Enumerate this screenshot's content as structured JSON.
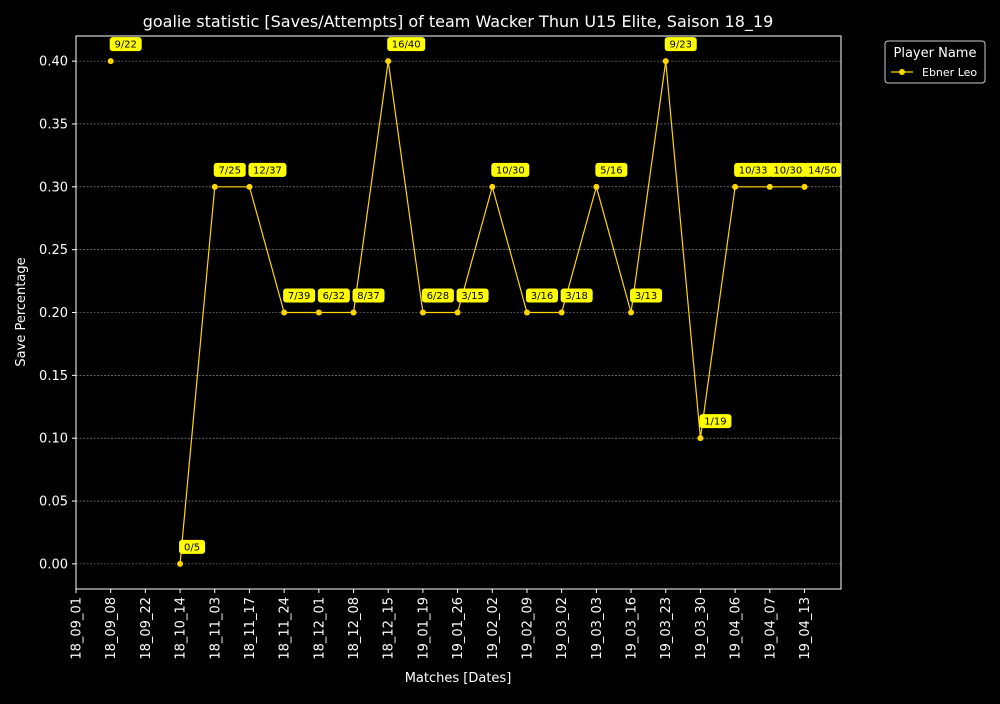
{
  "chart_data": {
    "type": "line",
    "title": "goalie statistic [Saves/Attempts] of team Wacker Thun U15 Elite, Saison 18_19",
    "xlabel": "Matches [Dates]",
    "ylabel": "Save Percentage",
    "x_ticks": [
      "18_09_01",
      "18_09_08",
      "18_09_22",
      "18_10_14",
      "18_11_03",
      "18_11_17",
      "18_11_24",
      "18_12_01",
      "18_12_08",
      "18_12_15",
      "19_01_19",
      "19_01_26",
      "19_02_02",
      "19_02_09",
      "19_03_02",
      "19_03_03",
      "19_03_16",
      "19_03_23",
      "19_03_30",
      "19_04_06",
      "19_04_07",
      "19_04_13"
    ],
    "y_ticks": [
      "0.00",
      "0.05",
      "0.10",
      "0.15",
      "0.20",
      "0.25",
      "0.30",
      "0.35",
      "0.40"
    ],
    "ylim": [
      -0.02,
      0.42
    ],
    "grid": true,
    "background": "#000000",
    "foreground": "#ffffff",
    "legend": {
      "title": "Player Name",
      "placement": "outside-top-right"
    },
    "series": [
      {
        "name": "Ebner Leo",
        "color": "#ffd700",
        "label_color": "#ffff00",
        "points": [
          {
            "x": "18_09_08",
            "y": 0.4,
            "label": "9/22"
          },
          {
            "x": "18_10_14",
            "y": 0.0,
            "label": "0/5"
          },
          {
            "x": "18_11_03",
            "y": 0.3,
            "label": "7/25"
          },
          {
            "x": "18_11_17",
            "y": 0.3,
            "label": "12/37"
          },
          {
            "x": "18_11_24",
            "y": 0.2,
            "label": "7/39"
          },
          {
            "x": "18_12_01",
            "y": 0.2,
            "label": "6/32"
          },
          {
            "x": "18_12_08",
            "y": 0.2,
            "label": "8/37"
          },
          {
            "x": "18_12_15",
            "y": 0.4,
            "label": "16/40"
          },
          {
            "x": "19_01_19",
            "y": 0.2,
            "label": "6/28"
          },
          {
            "x": "19_01_26",
            "y": 0.2,
            "label": "3/15"
          },
          {
            "x": "19_02_02",
            "y": 0.3,
            "label": "10/30"
          },
          {
            "x": "19_02_09",
            "y": 0.2,
            "label": "3/16"
          },
          {
            "x": "19_03_02",
            "y": 0.2,
            "label": "3/18"
          },
          {
            "x": "19_03_03",
            "y": 0.3,
            "label": "5/16"
          },
          {
            "x": "19_03_16",
            "y": 0.2,
            "label": "3/13"
          },
          {
            "x": "19_03_23",
            "y": 0.4,
            "label": "9/23"
          },
          {
            "x": "19_03_30",
            "y": 0.1,
            "label": "1/19"
          },
          {
            "x": "19_04_06",
            "y": 0.3,
            "label": "10/33"
          },
          {
            "x": "19_04_07",
            "y": 0.3,
            "label": "10/30"
          },
          {
            "x": "19_04_13",
            "y": 0.3,
            "label": "14/50"
          }
        ]
      }
    ]
  }
}
